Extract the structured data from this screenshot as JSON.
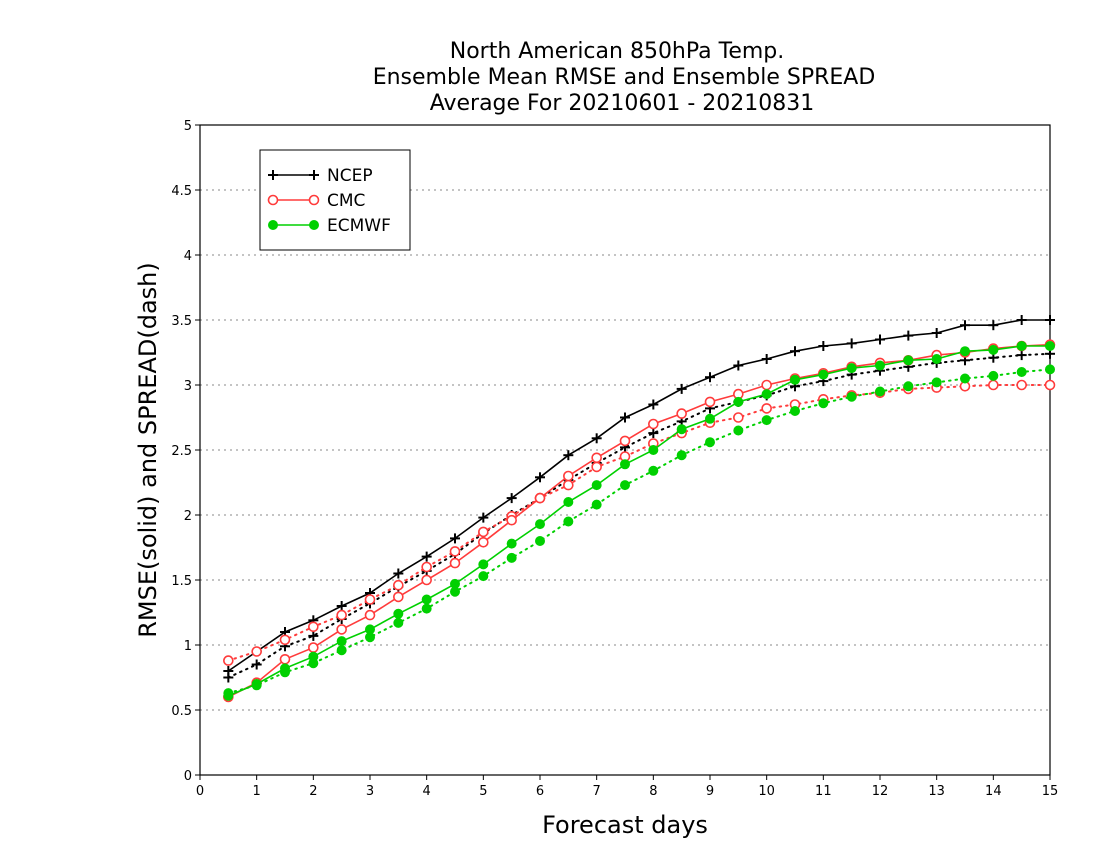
{
  "chart_data": {
    "type": "line",
    "title": [
      "North American 850hPa Temp.",
      "Ensemble Mean RMSE and Ensemble SPREAD",
      "Average For 20210601 - 20210831"
    ],
    "xlabel": "Forecast days",
    "ylabel": "RMSE(solid) and SPREAD(dash)",
    "xlim": [
      0,
      15
    ],
    "ylim": [
      0,
      5
    ],
    "xticks": [
      "0",
      "1",
      "2",
      "3",
      "4",
      "5",
      "6",
      "7",
      "8",
      "9",
      "10",
      "11",
      "12",
      "13",
      "14",
      "15"
    ],
    "yticks": [
      "0",
      "0.5",
      "1",
      "1.5",
      "2",
      "2.5",
      "3",
      "3.5",
      "4",
      "4.5",
      "5"
    ],
    "grid": "horizontal-dotted",
    "legend_position": "top-left",
    "x": [
      0.5,
      1,
      1.5,
      2,
      2.5,
      3,
      3.5,
      4,
      4.5,
      5,
      5.5,
      6,
      6.5,
      7,
      7.5,
      8,
      8.5,
      9,
      9.5,
      10,
      10.5,
      11,
      11.5,
      12,
      12.5,
      13,
      13.5,
      14,
      14.5,
      15
    ],
    "series": [
      {
        "name": "NCEP",
        "color": "#000000",
        "marker": "plus",
        "rmse": [
          0.8,
          0.95,
          1.1,
          1.19,
          1.3,
          1.4,
          1.55,
          1.68,
          1.82,
          1.98,
          2.13,
          2.29,
          2.46,
          2.59,
          2.75,
          2.85,
          2.97,
          3.06,
          3.15,
          3.2,
          3.26,
          3.3,
          3.32,
          3.35,
          3.38,
          3.4,
          3.46,
          3.46,
          3.5,
          3.5
        ],
        "spread": [
          0.75,
          0.85,
          0.99,
          1.07,
          1.2,
          1.32,
          1.45,
          1.57,
          1.7,
          1.86,
          2.0,
          2.13,
          2.27,
          2.4,
          2.52,
          2.63,
          2.72,
          2.82,
          2.87,
          2.92,
          2.99,
          3.03,
          3.08,
          3.11,
          3.14,
          3.17,
          3.19,
          3.21,
          3.23,
          3.24
        ]
      },
      {
        "name": "CMC",
        "color": "#ff3b3b",
        "marker": "open-circle",
        "rmse": [
          0.6,
          0.71,
          0.89,
          0.98,
          1.12,
          1.23,
          1.37,
          1.5,
          1.63,
          1.79,
          1.96,
          2.13,
          2.3,
          2.44,
          2.57,
          2.7,
          2.78,
          2.87,
          2.93,
          3.0,
          3.05,
          3.09,
          3.14,
          3.17,
          3.19,
          3.23,
          3.25,
          3.28,
          3.3,
          3.31
        ],
        "spread": [
          0.88,
          0.95,
          1.04,
          1.14,
          1.23,
          1.35,
          1.46,
          1.6,
          1.72,
          1.87,
          1.99,
          2.13,
          2.23,
          2.37,
          2.45,
          2.55,
          2.63,
          2.71,
          2.75,
          2.82,
          2.85,
          2.89,
          2.92,
          2.94,
          2.97,
          2.98,
          2.99,
          3.0,
          3.0,
          3.0
        ]
      },
      {
        "name": "ECMWF",
        "color": "#00d000",
        "marker": "filled-circle",
        "rmse": [
          0.61,
          0.7,
          0.82,
          0.91,
          1.03,
          1.12,
          1.24,
          1.35,
          1.47,
          1.62,
          1.78,
          1.93,
          2.1,
          2.23,
          2.39,
          2.5,
          2.66,
          2.74,
          2.87,
          2.93,
          3.04,
          3.08,
          3.13,
          3.15,
          3.19,
          3.2,
          3.26,
          3.27,
          3.3,
          3.3
        ],
        "spread": [
          0.63,
          0.69,
          0.79,
          0.86,
          0.96,
          1.06,
          1.17,
          1.28,
          1.41,
          1.53,
          1.67,
          1.8,
          1.95,
          2.08,
          2.23,
          2.34,
          2.46,
          2.56,
          2.65,
          2.73,
          2.8,
          2.86,
          2.91,
          2.95,
          2.99,
          3.02,
          3.05,
          3.07,
          3.1,
          3.12
        ]
      }
    ]
  }
}
